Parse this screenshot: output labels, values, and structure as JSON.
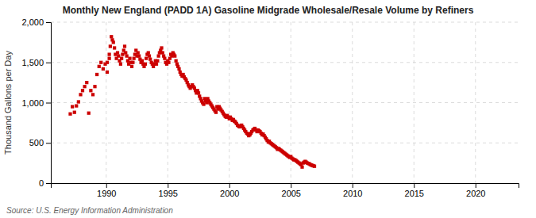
{
  "chart_data": {
    "type": "scatter",
    "title": "Monthly New England (PADD 1A) Gasoline Midgrade Wholesale/Resale Volume by Refiners",
    "ylabel": "Thousand Gallons per Day",
    "source": "Source: U.S. Energy Information Administration",
    "color": "#CC0000",
    "marker": "square",
    "grid": true,
    "xlim": [
      1985.5,
      2023.5
    ],
    "xticks": [
      1990,
      1995,
      2000,
      2005,
      2010,
      2015,
      2020
    ],
    "ylim": [
      0,
      2000
    ],
    "yticks": [
      0,
      500,
      {
        "value": 1000,
        "label": "1,000"
      },
      {
        "value": 1500,
        "label": "1,500"
      },
      {
        "value": 2000,
        "label": "2,000"
      }
    ],
    "x": [
      1987.08,
      1987.25,
      1987.42,
      1987.58,
      1987.75,
      1987.92,
      1988.08,
      1988.25,
      1988.42,
      1988.58,
      1988.75,
      1988.92,
      1989.08,
      1989.25,
      1989.42,
      1989.58,
      1989.75,
      1989.92,
      1990.08,
      1990.25,
      1990.08,
      1990.25,
      1990.33,
      1990.42,
      1990.5,
      1990.58,
      1990.67,
      1990.75,
      1990.83,
      1990.92,
      1991.0,
      1991.08,
      1991.17,
      1991.25,
      1991.33,
      1991.42,
      1991.5,
      1991.58,
      1991.67,
      1991.75,
      1991.83,
      1991.92,
      1992.0,
      1992.08,
      1992.17,
      1992.25,
      1992.33,
      1992.42,
      1992.5,
      1992.58,
      1992.67,
      1992.75,
      1992.83,
      1992.92,
      1993.0,
      1993.08,
      1993.17,
      1993.25,
      1993.33,
      1993.42,
      1993.5,
      1993.58,
      1993.67,
      1993.75,
      1993.83,
      1993.92,
      1994.0,
      1994.08,
      1994.17,
      1994.25,
      1994.33,
      1994.42,
      1994.5,
      1994.58,
      1994.67,
      1994.75,
      1994.83,
      1994.92,
      1995.0,
      1995.08,
      1995.17,
      1995.25,
      1995.33,
      1995.42,
      1995.5,
      1995.58,
      1995.67,
      1995.75,
      1995.83,
      1995.92,
      1996.0,
      1996.08,
      1996.17,
      1996.25,
      1996.33,
      1996.42,
      1996.5,
      1996.58,
      1996.67,
      1996.75,
      1996.83,
      1996.92,
      1997.0,
      1997.08,
      1997.17,
      1997.25,
      1997.33,
      1997.42,
      1997.5,
      1997.58,
      1997.67,
      1997.75,
      1997.83,
      1997.92,
      1998.0,
      1998.08,
      1998.17,
      1998.25,
      1998.33,
      1998.42,
      1998.5,
      1998.58,
      1998.67,
      1998.75,
      1998.83,
      1998.92,
      1999.0,
      1999.08,
      1999.17,
      1999.25,
      1999.33,
      1999.42,
      1999.5,
      1999.58,
      1999.67,
      1999.75,
      1999.83,
      1999.92,
      2000.0,
      2000.08,
      2000.17,
      2000.25,
      2000.33,
      2000.42,
      2000.5,
      2000.58,
      2000.67,
      2000.75,
      2000.83,
      2000.92,
      2001.0,
      2001.08,
      2001.17,
      2001.25,
      2001.33,
      2001.42,
      2001.5,
      2001.58,
      2001.67,
      2001.75,
      2001.83,
      2001.92,
      2002.0,
      2002.08,
      2002.17,
      2002.25,
      2002.33,
      2002.42,
      2002.5,
      2002.58,
      2002.67,
      2002.75,
      2002.83,
      2002.92,
      2003.0,
      2003.08,
      2003.17,
      2003.25,
      2003.33,
      2003.42,
      2003.5,
      2003.58,
      2003.67,
      2003.75,
      2003.83,
      2003.92,
      2004.0,
      2004.08,
      2004.17,
      2004.25,
      2004.33,
      2004.42,
      2004.5,
      2004.58,
      2004.67,
      2004.75,
      2004.83,
      2004.92,
      2005.0,
      2005.08,
      2005.17,
      2005.25,
      2005.33,
      2005.42,
      2005.5,
      2005.58,
      2005.67,
      2005.75,
      2005.83,
      2005.92,
      2006.0,
      2006.08,
      2006.17,
      2006.25,
      2006.33,
      2006.42,
      2006.5,
      2006.58,
      2006.67,
      2006.75,
      2006.83,
      2006.92
    ],
    "values": [
      860,
      950,
      880,
      960,
      1010,
      1100,
      1150,
      1200,
      1250,
      870,
      1150,
      1100,
      1200,
      1350,
      1450,
      1500,
      1420,
      1480,
      1380,
      1550,
      1500,
      1600,
      1700,
      1820,
      1780,
      1750,
      1680,
      1600,
      1550,
      1620,
      1580,
      1520,
      1480,
      1550,
      1600,
      1650,
      1700,
      1620,
      1580,
      1520,
      1480,
      1550,
      1500,
      1450,
      1500,
      1550,
      1600,
      1650,
      1580,
      1620,
      1580,
      1540,
      1500,
      1520,
      1480,
      1450,
      1480,
      1550,
      1600,
      1620,
      1580,
      1540,
      1500,
      1480,
      1450,
      1480,
      1520,
      1480,
      1520,
      1580,
      1620,
      1650,
      1680,
      1620,
      1580,
      1550,
      1500,
      1480,
      1520,
      1500,
      1550,
      1600,
      1580,
      1620,
      1600,
      1580,
      1520,
      1480,
      1450,
      1420,
      1380,
      1350,
      1330,
      1350,
      1320,
      1300,
      1280,
      1250,
      1220,
      1200,
      1180,
      1200,
      1220,
      1200,
      1180,
      1150,
      1120,
      1150,
      1120,
      1080,
      1050,
      1020,
      1000,
      980,
      1050,
      1020,
      1000,
      1050,
      1020,
      1000,
      980,
      960,
      940,
      920,
      900,
      880,
      950,
      920,
      950,
      930,
      910,
      890,
      870,
      850,
      830,
      820,
      840,
      820,
      800,
      820,
      800,
      780,
      790,
      770,
      760,
      740,
      720,
      710,
      700,
      710,
      720,
      700,
      680,
      660,
      640,
      620,
      610,
      590,
      600,
      620,
      640,
      660,
      670,
      680,
      660,
      640,
      660,
      650,
      640,
      620,
      600,
      610,
      590,
      570,
      550,
      530,
      510,
      520,
      500,
      490,
      480,
      470,
      460,
      450,
      440,
      420,
      430,
      420,
      410,
      400,
      390,
      380,
      370,
      360,
      350,
      340,
      330,
      320,
      330,
      310,
      300,
      290,
      290,
      280,
      270,
      260,
      250,
      240,
      230,
      200,
      250,
      260,
      270,
      260,
      250,
      245,
      240,
      230,
      225,
      220,
      215,
      210
    ]
  }
}
